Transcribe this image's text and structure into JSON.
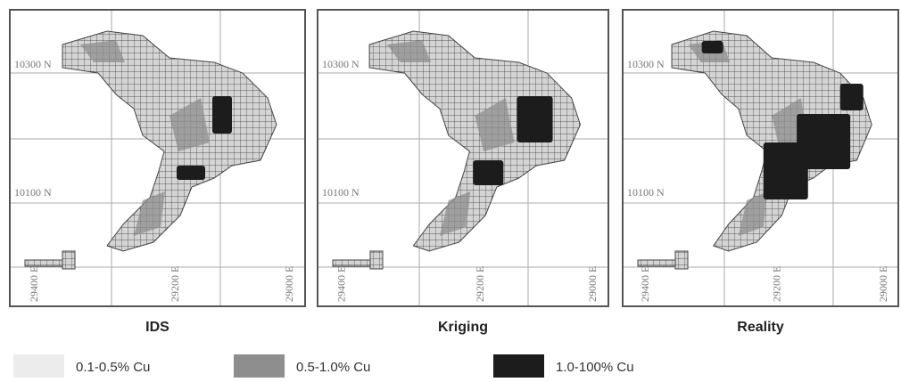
{
  "panels": [
    {
      "title": "IDS",
      "north_labels": [
        "10300 N",
        "10100 N"
      ],
      "east_labels": [
        "29400 E",
        "29200 E",
        "29000 E"
      ]
    },
    {
      "title": "Kriging",
      "north_labels": [
        "10300 N",
        "10100 N"
      ],
      "east_labels": [
        "29400 E",
        "29200 E",
        "29000 E"
      ]
    },
    {
      "title": "Reality",
      "north_labels": [
        "10300 N",
        "10100 N"
      ],
      "east_labels": [
        "29400 E",
        "29200 E",
        "29000 E"
      ]
    }
  ],
  "legend": [
    {
      "label": "0.1-0.5% Cu",
      "color": "#ececec"
    },
    {
      "label": "0.5-1.0% Cu",
      "color": "#8e8e8e"
    },
    {
      "label": "1.0-100% Cu",
      "color": "#1c1c1c"
    }
  ]
}
